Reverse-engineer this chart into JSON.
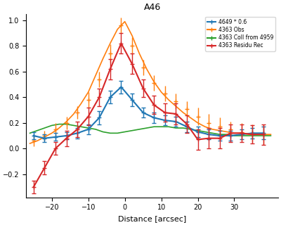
{
  "title": "A46",
  "xlabel": "Distance [arcsec]",
  "xlim": [
    -27,
    42
  ],
  "ylim": [
    -0.38,
    1.05
  ],
  "legend_labels": [
    "4649 * 0.6",
    "4363 Obs",
    "4363 Coll from 4959",
    "4363 Residu Rec"
  ],
  "legend_colors": [
    "#1f77b4",
    "#ff7f0e",
    "#2ca02c",
    "#d62728"
  ],
  "background": "#ffffff",
  "orange_x": [
    -25,
    -22,
    -19,
    -16,
    -13,
    -10,
    -7,
    -4,
    -1,
    2,
    5,
    8,
    11,
    14,
    17,
    20,
    23,
    26,
    29,
    32,
    35,
    38
  ],
  "orange_y": [
    0.06,
    0.1,
    0.15,
    0.2,
    0.28,
    0.38,
    0.54,
    0.74,
    0.96,
    0.8,
    0.63,
    0.51,
    0.43,
    0.37,
    0.31,
    0.25,
    0.2,
    0.17,
    0.15,
    0.13,
    0.12,
    0.11
  ],
  "orange_err": [
    0.04,
    0.04,
    0.05,
    0.05,
    0.05,
    0.06,
    0.06,
    0.07,
    0.06,
    0.07,
    0.06,
    0.06,
    0.06,
    0.06,
    0.06,
    0.07,
    0.07,
    0.07,
    0.06,
    0.07,
    0.07,
    0.08
  ],
  "orange_smooth_x": [
    -26,
    -24,
    -22,
    -20,
    -18,
    -16,
    -14,
    -12,
    -10,
    -8,
    -6,
    -4,
    -2,
    0,
    2,
    4,
    6,
    8,
    10,
    12,
    14,
    16,
    18,
    20,
    22,
    24,
    26,
    28,
    30,
    32,
    34,
    36,
    38,
    40
  ],
  "orange_smooth_y": [
    0.04,
    0.06,
    0.09,
    0.12,
    0.16,
    0.21,
    0.27,
    0.35,
    0.44,
    0.57,
    0.7,
    0.82,
    0.93,
    0.99,
    0.88,
    0.74,
    0.62,
    0.52,
    0.44,
    0.38,
    0.33,
    0.28,
    0.24,
    0.2,
    0.17,
    0.15,
    0.14,
    0.13,
    0.12,
    0.12,
    0.11,
    0.11,
    0.11,
    0.11
  ],
  "green_smooth_x": [
    -26,
    -24,
    -22,
    -20,
    -18,
    -16,
    -14,
    -12,
    -10,
    -8,
    -6,
    -4,
    -2,
    0,
    2,
    4,
    6,
    8,
    10,
    12,
    14,
    16,
    18,
    20,
    22,
    24,
    26,
    28,
    30,
    32,
    34,
    36,
    38,
    40
  ],
  "green_smooth_y": [
    0.12,
    0.14,
    0.16,
    0.18,
    0.19,
    0.19,
    0.18,
    0.17,
    0.16,
    0.15,
    0.13,
    0.12,
    0.12,
    0.13,
    0.14,
    0.15,
    0.16,
    0.17,
    0.17,
    0.17,
    0.16,
    0.16,
    0.15,
    0.14,
    0.13,
    0.12,
    0.11,
    0.11,
    0.1,
    0.1,
    0.1,
    0.1,
    0.1,
    0.1
  ],
  "blue_x": [
    -25,
    -22,
    -19,
    -16,
    -13,
    -10,
    -7,
    -4,
    -1,
    2,
    5,
    8,
    11,
    14,
    17,
    20,
    23,
    26,
    29,
    32,
    35,
    38
  ],
  "blue_y": [
    0.1,
    0.08,
    0.09,
    0.1,
    0.12,
    0.15,
    0.24,
    0.4,
    0.48,
    0.38,
    0.28,
    0.24,
    0.22,
    0.21,
    0.17,
    0.13,
    0.11,
    0.1,
    0.1,
    0.11,
    0.12,
    0.12
  ],
  "blue_err": [
    0.03,
    0.03,
    0.03,
    0.03,
    0.04,
    0.04,
    0.05,
    0.05,
    0.05,
    0.05,
    0.04,
    0.04,
    0.04,
    0.04,
    0.04,
    0.04,
    0.04,
    0.04,
    0.04,
    0.04,
    0.04,
    0.05
  ],
  "red_x": [
    -25,
    -22,
    -19,
    -16,
    -13,
    -10,
    -7,
    -4,
    -1,
    2,
    5,
    8,
    11,
    14,
    17,
    20,
    23,
    26,
    29,
    32,
    35,
    38
  ],
  "red_y": [
    -0.3,
    -0.15,
    0.0,
    0.08,
    0.15,
    0.25,
    0.4,
    0.62,
    0.82,
    0.66,
    0.47,
    0.34,
    0.28,
    0.27,
    0.19,
    0.07,
    0.08,
    0.08,
    0.12,
    0.12,
    0.11,
    0.11
  ],
  "red_err": [
    0.05,
    0.05,
    0.05,
    0.06,
    0.06,
    0.07,
    0.07,
    0.08,
    0.08,
    0.08,
    0.07,
    0.07,
    0.07,
    0.08,
    0.07,
    0.08,
    0.08,
    0.08,
    0.07,
    0.07,
    0.07,
    0.08
  ]
}
